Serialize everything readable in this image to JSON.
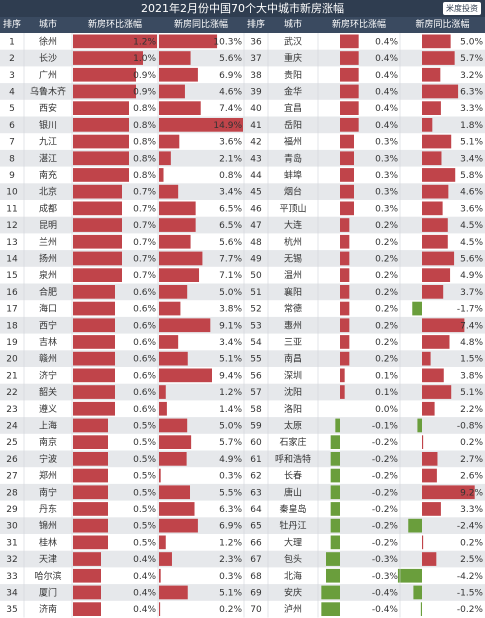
{
  "title": "2021年2月份中国70个大中城市新房涨幅",
  "brand": "米度投资",
  "headers": {
    "rank": "排序",
    "city": "城市",
    "mom": "新房环比涨幅",
    "yoy": "新房同比涨幅"
  },
  "colors": {
    "positive": "#c0444a",
    "negative": "#6a9e3c",
    "row_alt": "#e6e8eb",
    "header": "#3a4a60",
    "title": "#2f3d50"
  },
  "chart_data": {
    "type": "table",
    "columns": [
      "排序",
      "城市",
      "新房环比涨幅",
      "新房同比涨幅"
    ],
    "rows": [
      {
        "rank": "1",
        "city": "徐州",
        "mom": 1.2,
        "yoy": 10.3
      },
      {
        "rank": "2",
        "city": "长沙",
        "mom": 1.0,
        "yoy": 5.6
      },
      {
        "rank": "3",
        "city": "广州",
        "mom": 0.9,
        "yoy": 6.9
      },
      {
        "rank": "4",
        "city": "乌鲁木齐",
        "mom": 0.9,
        "yoy": 4.6
      },
      {
        "rank": "5",
        "city": "西安",
        "mom": 0.8,
        "yoy": 7.4
      },
      {
        "rank": "6",
        "city": "银川",
        "mom": 0.8,
        "yoy": 14.9
      },
      {
        "rank": "7",
        "city": "九江",
        "mom": 0.8,
        "yoy": 3.6
      },
      {
        "rank": "8",
        "city": "湛江",
        "mom": 0.8,
        "yoy": 2.1
      },
      {
        "rank": "9",
        "city": "南充",
        "mom": 0.8,
        "yoy": 0.8
      },
      {
        "rank": "10",
        "city": "北京",
        "mom": 0.7,
        "yoy": 3.4
      },
      {
        "rank": "11",
        "city": "成都",
        "mom": 0.7,
        "yoy": 6.5
      },
      {
        "rank": "12",
        "city": "昆明",
        "mom": 0.7,
        "yoy": 6.5
      },
      {
        "rank": "13",
        "city": "兰州",
        "mom": 0.7,
        "yoy": 5.6
      },
      {
        "rank": "14",
        "city": "扬州",
        "mom": 0.7,
        "yoy": 7.7
      },
      {
        "rank": "15",
        "city": "泉州",
        "mom": 0.7,
        "yoy": 7.1
      },
      {
        "rank": "16",
        "city": "合肥",
        "mom": 0.6,
        "yoy": 5.0
      },
      {
        "rank": "17",
        "city": "海口",
        "mom": 0.6,
        "yoy": 3.8
      },
      {
        "rank": "18",
        "city": "西宁",
        "mom": 0.6,
        "yoy": 9.1
      },
      {
        "rank": "19",
        "city": "吉林",
        "mom": 0.6,
        "yoy": 3.4
      },
      {
        "rank": "20",
        "city": "赣州",
        "mom": 0.6,
        "yoy": 5.1
      },
      {
        "rank": "21",
        "city": "济宁",
        "mom": 0.6,
        "yoy": 9.4
      },
      {
        "rank": "22",
        "city": "韶关",
        "mom": 0.6,
        "yoy": 1.2
      },
      {
        "rank": "23",
        "city": "遵义",
        "mom": 0.6,
        "yoy": 1.4
      },
      {
        "rank": "24",
        "city": "上海",
        "mom": 0.5,
        "yoy": 5.0
      },
      {
        "rank": "25",
        "city": "南京",
        "mom": 0.5,
        "yoy": 5.7
      },
      {
        "rank": "26",
        "city": "宁波",
        "mom": 0.5,
        "yoy": 4.9
      },
      {
        "rank": "27",
        "city": "郑州",
        "mom": 0.5,
        "yoy": 0.3
      },
      {
        "rank": "28",
        "city": "南宁",
        "mom": 0.5,
        "yoy": 5.5
      },
      {
        "rank": "29",
        "city": "丹东",
        "mom": 0.5,
        "yoy": 6.3
      },
      {
        "rank": "30",
        "city": "锦州",
        "mom": 0.5,
        "yoy": 6.9
      },
      {
        "rank": "31",
        "city": "桂林",
        "mom": 0.5,
        "yoy": 1.2
      },
      {
        "rank": "32",
        "city": "天津",
        "mom": 0.4,
        "yoy": 2.3
      },
      {
        "rank": "33",
        "city": "哈尔滨",
        "mom": 0.4,
        "yoy": 0.3
      },
      {
        "rank": "34",
        "city": "厦门",
        "mom": 0.4,
        "yoy": 5.1
      },
      {
        "rank": "35",
        "city": "济南",
        "mom": 0.4,
        "yoy": 0.2
      },
      {
        "rank": "36",
        "city": "武汉",
        "mom": 0.4,
        "yoy": 5.0
      },
      {
        "rank": "37",
        "city": "重庆",
        "mom": 0.4,
        "yoy": 5.7
      },
      {
        "rank": "38",
        "city": "贵阳",
        "mom": 0.4,
        "yoy": 3.2
      },
      {
        "rank": "39",
        "city": "金华",
        "mom": 0.4,
        "yoy": 6.3
      },
      {
        "rank": "40",
        "city": "宜昌",
        "mom": 0.4,
        "yoy": 3.3
      },
      {
        "rank": "41",
        "city": "岳阳",
        "mom": 0.4,
        "yoy": 1.8
      },
      {
        "rank": "42",
        "city": "福州",
        "mom": 0.3,
        "yoy": 5.1
      },
      {
        "rank": "43",
        "city": "青岛",
        "mom": 0.3,
        "yoy": 3.4
      },
      {
        "rank": "44",
        "city": "蚌埠",
        "mom": 0.3,
        "yoy": 5.8
      },
      {
        "rank": "45",
        "city": "烟台",
        "mom": 0.3,
        "yoy": 4.6
      },
      {
        "rank": "46",
        "city": "平顶山",
        "mom": 0.3,
        "yoy": 3.6
      },
      {
        "rank": "47",
        "city": "大连",
        "mom": 0.2,
        "yoy": 4.5
      },
      {
        "rank": "48",
        "city": "杭州",
        "mom": 0.2,
        "yoy": 4.5
      },
      {
        "rank": "49",
        "city": "无锡",
        "mom": 0.2,
        "yoy": 5.6
      },
      {
        "rank": "50",
        "city": "温州",
        "mom": 0.2,
        "yoy": 4.9
      },
      {
        "rank": "51",
        "city": "襄阳",
        "mom": 0.2,
        "yoy": 3.7
      },
      {
        "rank": "52",
        "city": "常德",
        "mom": 0.2,
        "yoy": -1.7
      },
      {
        "rank": "53",
        "city": "惠州",
        "mom": 0.2,
        "yoy": 7.4
      },
      {
        "rank": "54",
        "city": "三亚",
        "mom": 0.2,
        "yoy": 4.8
      },
      {
        "rank": "55",
        "city": "南昌",
        "mom": 0.2,
        "yoy": 1.5
      },
      {
        "rank": "56",
        "city": "深圳",
        "mom": 0.1,
        "yoy": 3.8
      },
      {
        "rank": "57",
        "city": "沈阳",
        "mom": 0.1,
        "yoy": 5.1
      },
      {
        "rank": "58",
        "city": "洛阳",
        "mom": 0.0,
        "yoy": 2.2
      },
      {
        "rank": "59",
        "city": "太原",
        "mom": -0.1,
        "yoy": -0.8
      },
      {
        "rank": "60",
        "city": "石家庄",
        "mom": -0.2,
        "yoy": 0.2
      },
      {
        "rank": "61",
        "city": "呼和浩特",
        "mom": -0.2,
        "yoy": 2.7
      },
      {
        "rank": "62",
        "city": "长春",
        "mom": -0.2,
        "yoy": 2.6
      },
      {
        "rank": "63",
        "city": "唐山",
        "mom": -0.2,
        "yoy": 9.2
      },
      {
        "rank": "64",
        "city": "秦皇岛",
        "mom": -0.2,
        "yoy": 3.3
      },
      {
        "rank": "65",
        "city": "牡丹江",
        "mom": -0.2,
        "yoy": -2.4
      },
      {
        "rank": "66",
        "city": "大理",
        "mom": -0.2,
        "yoy": 0.2
      },
      {
        "rank": "67",
        "city": "包头",
        "mom": -0.3,
        "yoy": 2.5
      },
      {
        "rank": "68",
        "city": "北海",
        "mom": -0.3,
        "yoy": -4.2
      },
      {
        "rank": "69",
        "city": "安庆",
        "mom": -0.4,
        "yoy": -1.5
      },
      {
        "rank": "70",
        "city": "泸州",
        "mom": -0.4,
        "yoy": -0.2
      }
    ]
  }
}
